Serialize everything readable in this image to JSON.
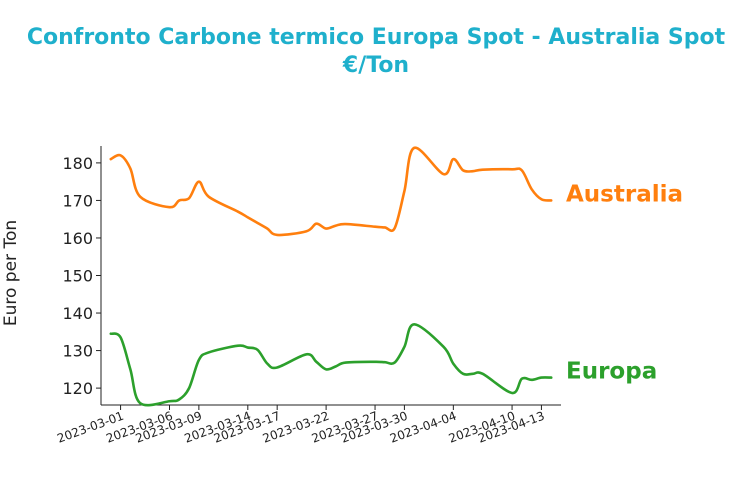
{
  "chart_data": {
    "type": "line",
    "title_line1": "Confronto Carbone termico Europa Spot - Australia Spot",
    "title_line2": "€/Ton",
    "ylabel": "Euro per Ton",
    "xlabel": "",
    "ylim": [
      115.5,
      184.5
    ],
    "yticks": [
      120,
      130,
      140,
      150,
      160,
      170,
      180
    ],
    "xticks": [
      "2023-03-01",
      "2023-03-06",
      "2023-03-09",
      "2023-03-14",
      "2023-03-17",
      "2023-03-22",
      "2023-03-27",
      "2023-03-30",
      "2023-04-04",
      "2023-04-10",
      "2023-04-13"
    ],
    "x": [
      "2023-02-28",
      "2023-03-01",
      "2023-03-02",
      "2023-03-03",
      "2023-03-06",
      "2023-03-07",
      "2023-03-08",
      "2023-03-09",
      "2023-03-10",
      "2023-03-13",
      "2023-03-14",
      "2023-03-15",
      "2023-03-16",
      "2023-03-17",
      "2023-03-20",
      "2023-03-21",
      "2023-03-22",
      "2023-03-23",
      "2023-03-24",
      "2023-03-27",
      "2023-03-28",
      "2023-03-29",
      "2023-03-30",
      "2023-03-31",
      "2023-04-03",
      "2023-04-04",
      "2023-04-05",
      "2023-04-06",
      "2023-04-07",
      "2023-04-10",
      "2023-04-11",
      "2023-04-12",
      "2023-04-13",
      "2023-04-14"
    ],
    "series": [
      {
        "name": "Australia",
        "color": "#ff7f0e",
        "values": [
          181.0,
          182.0,
          178.5,
          171.0,
          168.2,
          170.0,
          170.6,
          175.0,
          171.0,
          167.0,
          165.5,
          164.0,
          162.5,
          160.8,
          161.8,
          163.8,
          162.5,
          163.3,
          163.7,
          163.0,
          162.8,
          162.6,
          172.5,
          184.0,
          177.0,
          181.0,
          178.0,
          177.8,
          178.2,
          178.3,
          178.0,
          173.0,
          170.3,
          170.0
        ]
      },
      {
        "name": "Europa",
        "color": "#2ca02c",
        "values": [
          134.5,
          133.5,
          125.0,
          116.0,
          116.5,
          117.0,
          120.0,
          127.5,
          129.5,
          131.3,
          130.8,
          130.2,
          126.5,
          125.5,
          129.0,
          127.0,
          125.0,
          125.8,
          126.8,
          127.0,
          126.9,
          126.8,
          131.0,
          137.0,
          131.0,
          126.5,
          123.8,
          123.8,
          123.8,
          118.7,
          122.5,
          122.2,
          122.8,
          122.8
        ]
      }
    ]
  }
}
